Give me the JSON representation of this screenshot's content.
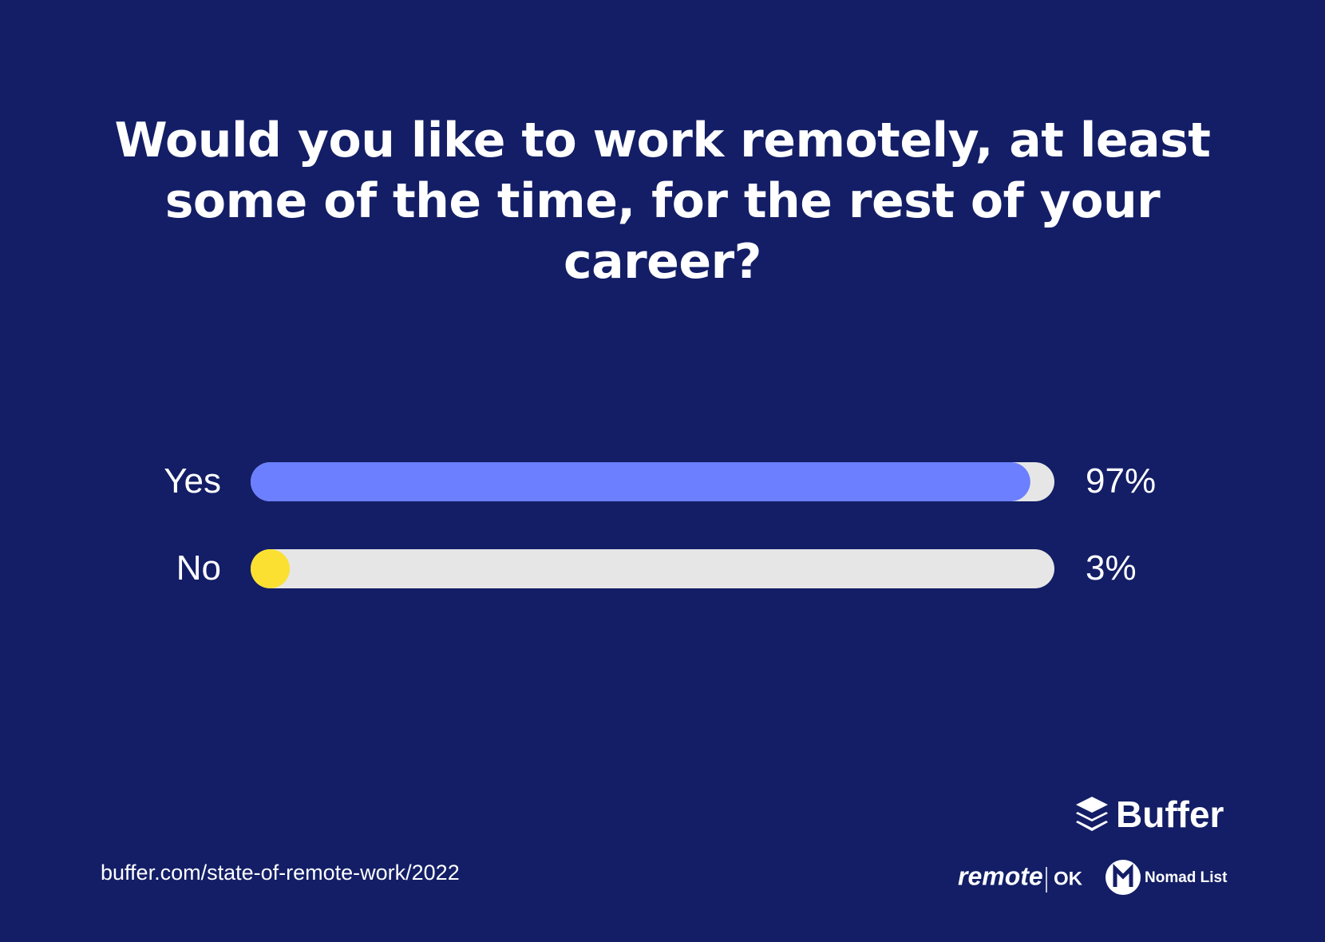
{
  "chart_data": {
    "type": "bar",
    "orientation": "horizontal",
    "title": "Would you like to work remotely, at least some of the time, for the rest of your career?",
    "categories": [
      "Yes",
      "No"
    ],
    "values": [
      97,
      3
    ],
    "value_labels": [
      "97%",
      "3%"
    ],
    "colors": [
      "#6b7fff",
      "#fbe032"
    ],
    "track_color": "#e6e6e6",
    "xlim": [
      0,
      100
    ],
    "source": "buffer.com/state-of-remote-work/2022",
    "logos": [
      "Buffer",
      "remote",
      "OK",
      "Nomad List"
    ]
  }
}
